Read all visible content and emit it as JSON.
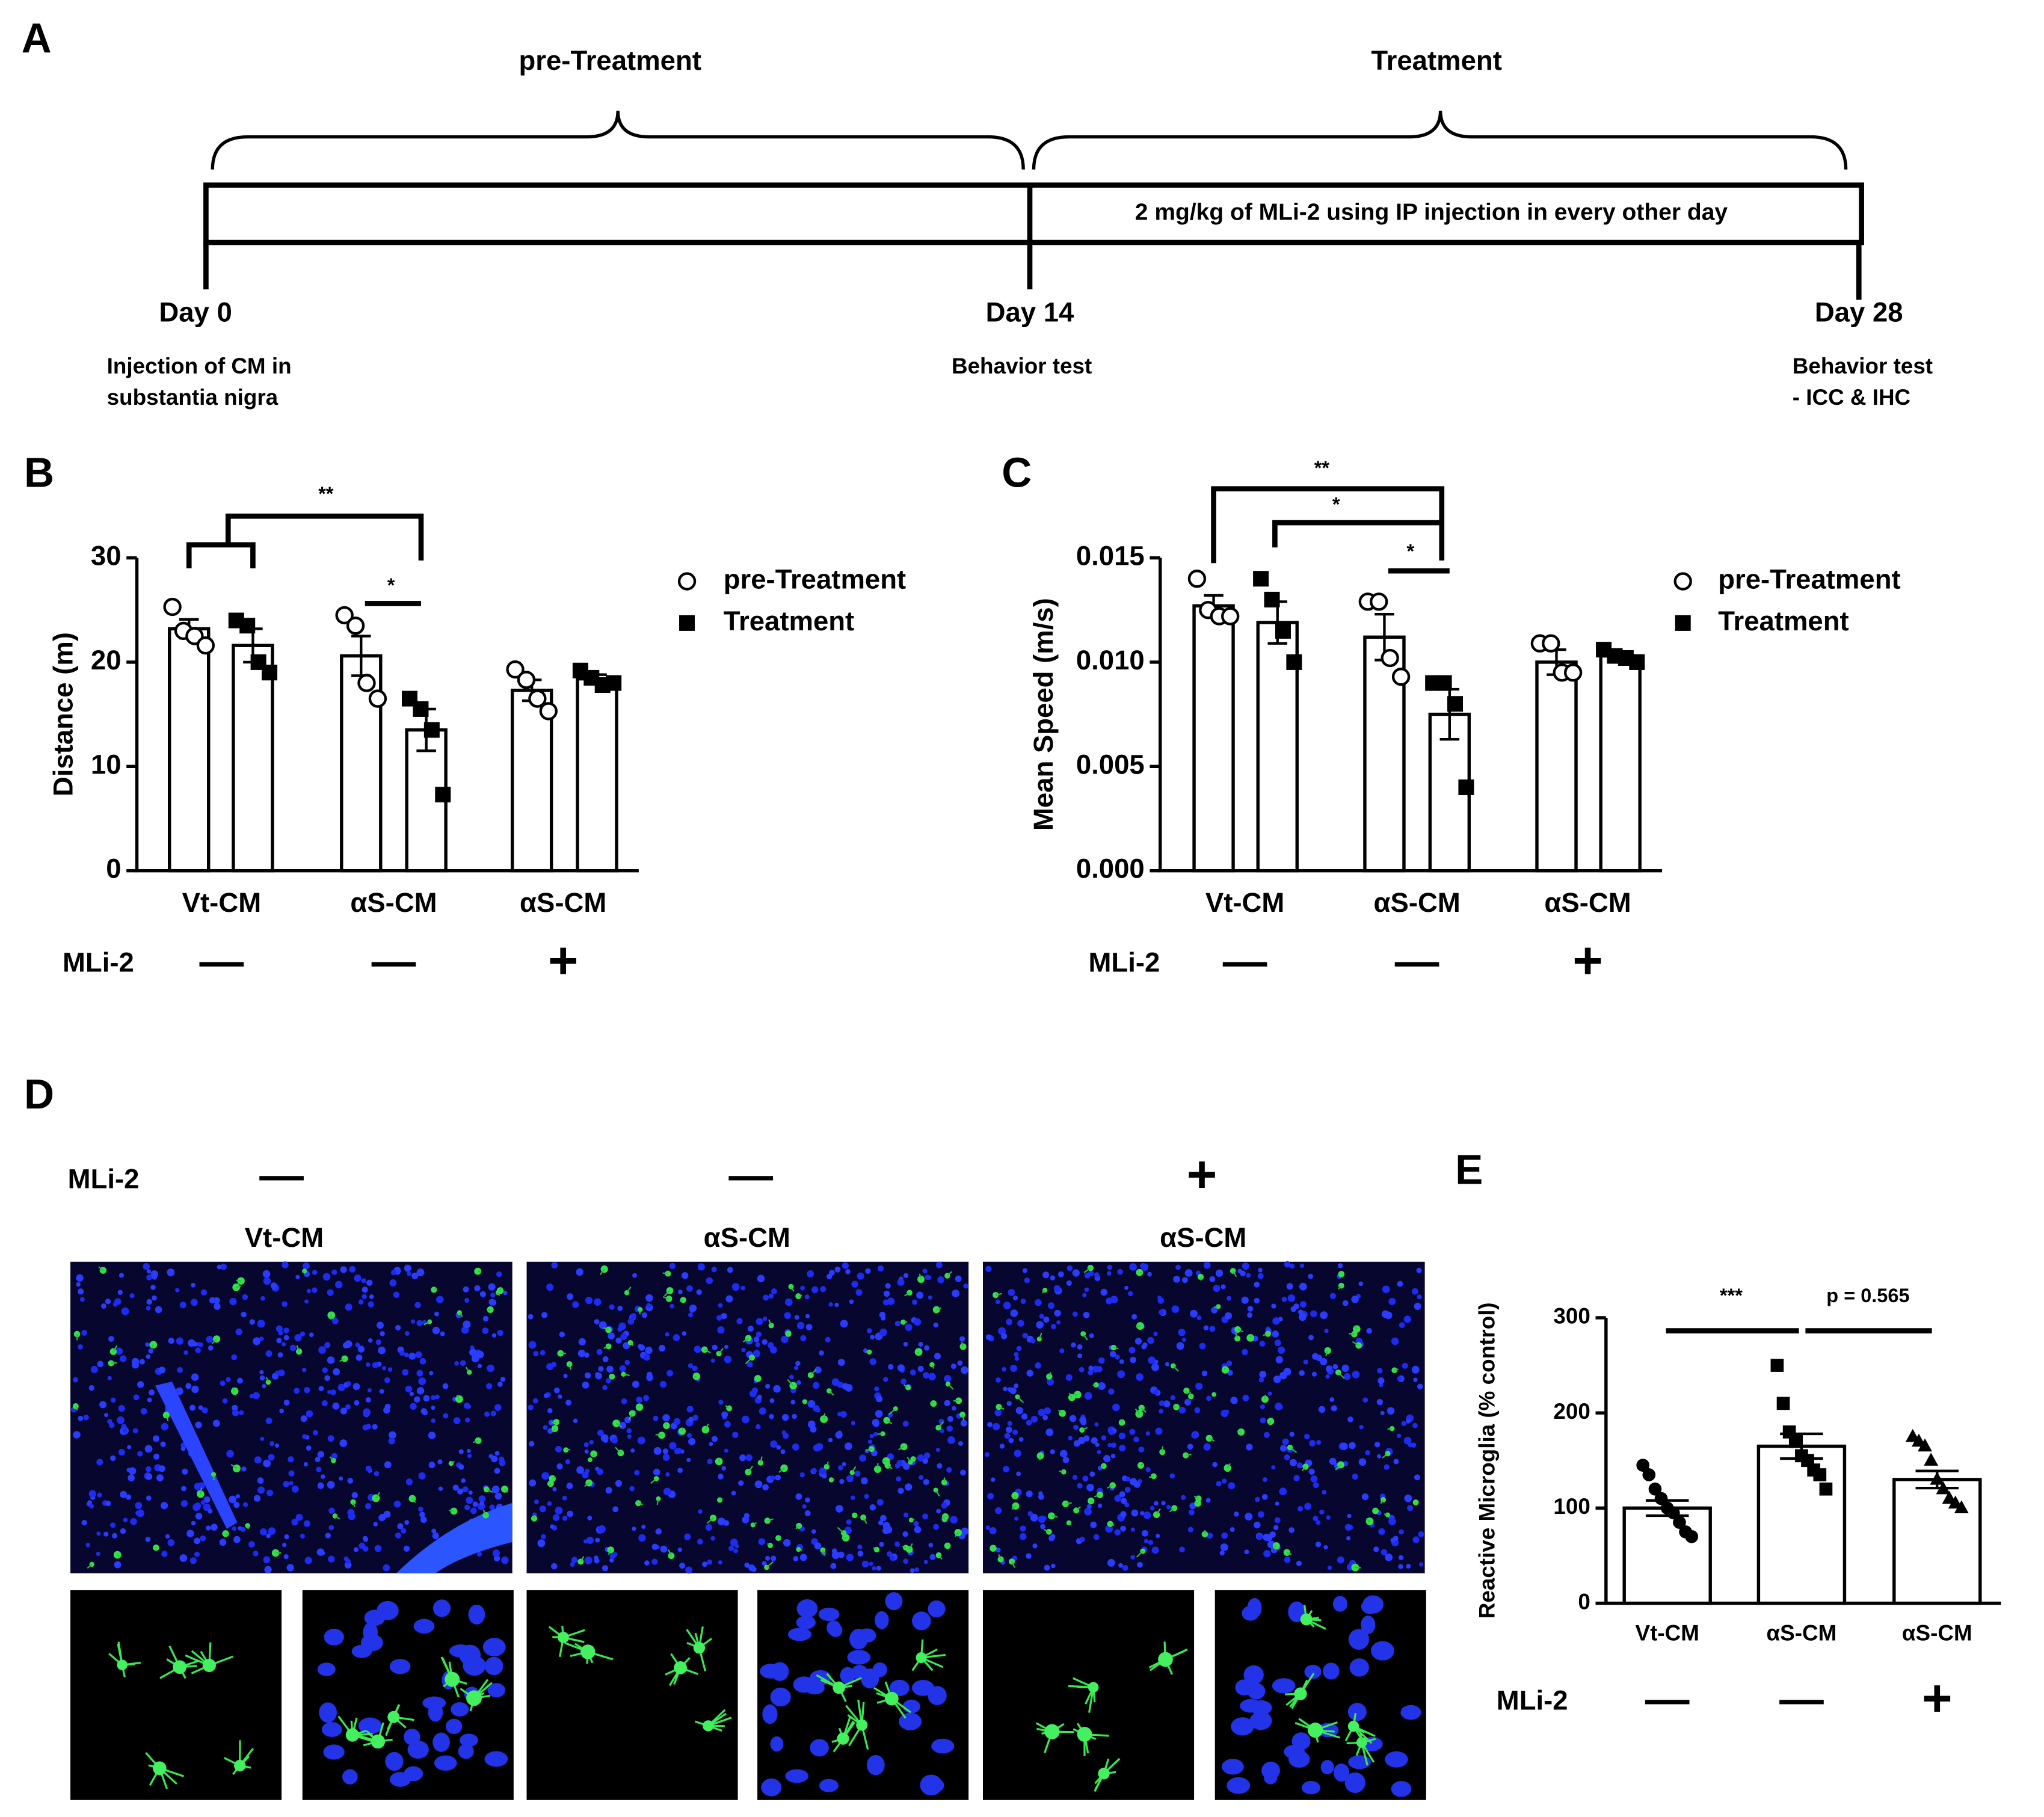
{
  "figure": {
    "panel_a": {
      "label": "A",
      "phases": [
        "pre-Treatment",
        "Treatment"
      ],
      "bar_text": "2 mg/kg of MLi-2 using IP injection in every other day",
      "days": [
        {
          "label": "Day 0",
          "note": [
            "Injection of CM in",
            "substantia nigra"
          ]
        },
        {
          "label": "Day 14",
          "note": [
            "Behavior test"
          ]
        },
        {
          "label": "Day 28",
          "note": [
            "Behavior test",
            "- ICC & IHC"
          ]
        }
      ]
    },
    "panel_d": {
      "label": "D",
      "row_label": "MLi-2",
      "treatment": [
        "—",
        "—",
        "+"
      ],
      "titles": [
        "Vt-CM",
        "αS-CM",
        "αS-CM"
      ]
    }
  },
  "chart_data": [
    {
      "type": "bar",
      "panel": "B",
      "ylabel": "Distance (m)",
      "categories": [
        "Vt-CM",
        "αS-CM",
        "αS-CM"
      ],
      "row_label": "MLi-2",
      "treatment": [
        "—",
        "—",
        "+"
      ],
      "ylim": [
        0,
        30
      ],
      "yticks": [
        0,
        10,
        20,
        30
      ],
      "series": [
        {
          "name": "pre-Treatment",
          "marker": "circle",
          "open_markers": true,
          "values": [
            23.2,
            20.6,
            17.3
          ],
          "errors": [
            0.9,
            1.9,
            1.0
          ],
          "points": [
            [
              25.3,
              23.0,
              22.5,
              21.6
            ],
            [
              24.5,
              23.5,
              18.0,
              16.5
            ],
            [
              19.3,
              18.3,
              16.5,
              15.3
            ]
          ]
        },
        {
          "name": "Treatment",
          "marker": "square",
          "open_markers": false,
          "values": [
            21.6,
            13.5,
            18.4
          ],
          "errors": [
            1.6,
            2.0,
            0.4
          ],
          "points": [
            [
              24.0,
              23.5,
              20.0,
              19.0
            ],
            [
              16.5,
              15.5,
              13.5,
              7.3
            ],
            [
              19.2,
              18.5,
              17.8,
              18.0
            ]
          ]
        }
      ],
      "annotations": [
        "**",
        "*"
      ]
    },
    {
      "type": "bar",
      "panel": "C",
      "ylabel": "Mean Speed (m/s)",
      "categories": [
        "Vt-CM",
        "αS-CM",
        "αS-CM"
      ],
      "row_label": "MLi-2",
      "treatment": [
        "—",
        "—",
        "+"
      ],
      "ylim": [
        0,
        0.015
      ],
      "yticks": [
        {
          "value": 0,
          "label": "0.000"
        },
        {
          "value": 0.005,
          "label": "0.005"
        },
        {
          "value": 0.01,
          "label": "0.010"
        },
        {
          "value": 0.015,
          "label": "0.015"
        }
      ],
      "series": [
        {
          "name": "pre-Treatment",
          "marker": "circle",
          "open_markers": true,
          "values": [
            0.0127,
            0.0112,
            0.01
          ],
          "errors": [
            0.0005,
            0.0011,
            0.0006
          ],
          "points": [
            [
              0.014,
              0.0125,
              0.0122,
              0.0122
            ],
            [
              0.0129,
              0.0129,
              0.0102,
              0.0093
            ],
            [
              0.0109,
              0.0109,
              0.0095,
              0.0095
            ]
          ]
        },
        {
          "name": "Treatment",
          "marker": "square",
          "open_markers": false,
          "values": [
            0.0119,
            0.0075,
            0.0103
          ],
          "errors": [
            0.001,
            0.0012,
            0.0002
          ],
          "points": [
            [
              0.014,
              0.013,
              0.0115,
              0.01
            ],
            [
              0.009,
              0.009,
              0.008,
              0.004
            ],
            [
              0.0106,
              0.0103,
              0.0102,
              0.01
            ]
          ]
        }
      ],
      "annotations": [
        "**",
        "*",
        "*"
      ]
    },
    {
      "type": "bar",
      "panel": "E",
      "ylabel": "Reactive Microglia (% control)",
      "categories": [
        "Vt-CM",
        "αS-CM",
        "αS-CM"
      ],
      "row_label": "MLi-2",
      "treatment": [
        "—",
        "—",
        "+"
      ],
      "ylim": [
        0,
        300
      ],
      "yticks": [
        0,
        100,
        200,
        300
      ],
      "values": [
        100,
        165,
        130
      ],
      "errors": [
        8,
        13,
        9
      ],
      "markers": [
        "circle",
        "square",
        "triangle"
      ],
      "open_markers": false,
      "points": [
        [
          145,
          135,
          120,
          110,
          100,
          95,
          85,
          75,
          70
        ],
        [
          250,
          210,
          180,
          170,
          155,
          150,
          140,
          135,
          120
        ],
        [
          175,
          170,
          165,
          150,
          130,
          120,
          110,
          105,
          100
        ]
      ],
      "annotations": [
        "***",
        "p = 0.565"
      ]
    }
  ]
}
